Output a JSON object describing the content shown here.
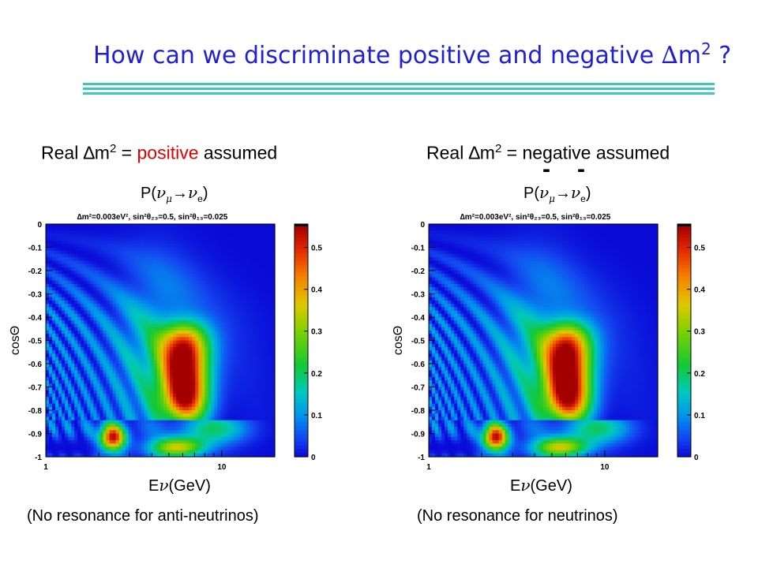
{
  "title": {
    "text": "How can we discriminate positive and negative ",
    "delta": "∆",
    "m": "m",
    "sup": "2",
    "tail": " ?"
  },
  "colors": {
    "title": "#1f1fd6",
    "rule": "#3fc7bd",
    "positive": "#e00000"
  },
  "left": {
    "head_prefix": "Real ",
    "delta": "∆",
    "m": "m",
    "sup": "2",
    "eq": " = ",
    "sign": "positive",
    "suffix": " assumed",
    "prob_p": "P(",
    "nu_mu": "ν",
    "sub_mu": "μ",
    "arrow": "→",
    "nu_e": "ν",
    "sub_e": "e",
    "close": ")",
    "energy_e": "E",
    "energy_nu": "ν",
    "energy_unit": "(GeV)",
    "note": "(No resonance for anti-neutrinos)"
  },
  "right": {
    "head_prefix": "Real ",
    "delta": "∆",
    "m": "m",
    "sup": "2",
    "eq": " = ",
    "sign": "negative",
    "suffix": " assumed",
    "bar1": "-",
    "bar2": "-",
    "prob_p": "P(",
    "nu_mu": "ν",
    "sub_mu": "μ",
    "arrow": "→",
    "nu_e": "ν",
    "sub_e": "e",
    "close": ")",
    "energy_e": "E",
    "energy_nu": "ν",
    "energy_unit": "(GeV)",
    "note": "(No resonance for neutrinos)"
  },
  "chart_data": [
    {
      "type": "heatmap",
      "title": "∆m²=0.003eV², sin²θ₂₃=0.5, sin²θ₁₃=0.025",
      "xlabel": "",
      "ylabel": "cosΘ",
      "x_scale": "log",
      "xlim": [
        1,
        20
      ],
      "ylim": [
        -1,
        0
      ],
      "x_ticks": [
        "1",
        "10"
      ],
      "y_ticks": [
        "0",
        "-0.1",
        "-0.2",
        "-0.3",
        "-0.4",
        "-0.5",
        "-0.6",
        "-0.7",
        "-0.8",
        "-0.9",
        "-1"
      ],
      "colorbar_ticks": [
        "0.5",
        "0.4",
        "0.3",
        "0.2",
        "0.1",
        "0"
      ],
      "zlim": [
        0,
        0.55
      ],
      "resonance": {
        "energy_gev": 6,
        "cos_theta_range": [
          -0.83,
          -0.45
        ],
        "peak_probability": 0.5
      },
      "core_boundary_cos_theta": -0.84
    },
    {
      "type": "heatmap",
      "title": "∆m²=0.003eV², sin²θ₂₃=0.5, sin²θ₁₃=0.025",
      "xlabel": "",
      "ylabel": "cosΘ",
      "x_scale": "log",
      "xlim": [
        1,
        20
      ],
      "ylim": [
        -1,
        0
      ],
      "x_ticks": [
        "1",
        "10"
      ],
      "y_ticks": [
        "0",
        "-0.1",
        "-0.2",
        "-0.3",
        "-0.4",
        "-0.5",
        "-0.6",
        "-0.7",
        "-0.8",
        "-0.9",
        "-1"
      ],
      "colorbar_ticks": [
        "0.5",
        "0.4",
        "0.3",
        "0.2",
        "0.1",
        "0"
      ],
      "zlim": [
        0,
        0.55
      ],
      "resonance": {
        "energy_gev": 6,
        "cos_theta_range": [
          -0.83,
          -0.45
        ],
        "peak_probability": 0.5
      },
      "core_boundary_cos_theta": -0.84
    }
  ]
}
